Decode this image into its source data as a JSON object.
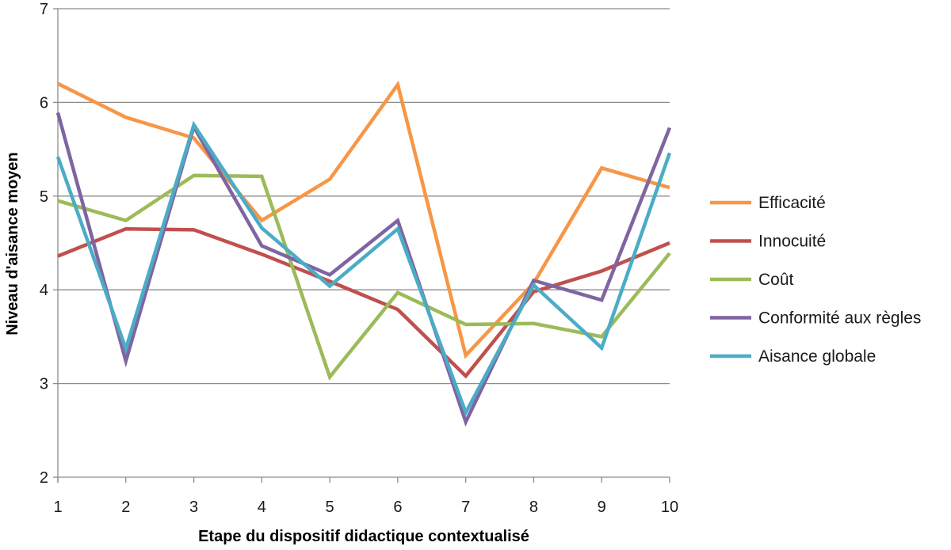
{
  "chart_data": {
    "type": "line",
    "title": "",
    "xlabel": "Etape du dispositif didactique contextualisé",
    "ylabel": "Niveau d'aisance moyen",
    "x": [
      1,
      2,
      3,
      4,
      5,
      6,
      7,
      8,
      9,
      10
    ],
    "xlim": [
      1,
      10
    ],
    "ylim": [
      2,
      7
    ],
    "yticks": [
      2,
      3,
      4,
      5,
      6,
      7
    ],
    "grid": "horizontal",
    "legend_position": "right",
    "series": [
      {
        "name": "Efficacité",
        "color": "#F79646",
        "values": [
          6.2,
          5.84,
          5.62,
          4.74,
          5.18,
          6.19,
          3.3,
          4.07,
          5.3,
          5.09
        ]
      },
      {
        "name": "Innocuité",
        "color": "#C0504D",
        "values": [
          4.36,
          4.65,
          4.64,
          4.38,
          4.09,
          3.79,
          3.08,
          3.98,
          4.2,
          4.5
        ]
      },
      {
        "name": "Coût",
        "color": "#9BBB59",
        "values": [
          4.95,
          4.74,
          5.22,
          5.21,
          3.07,
          3.97,
          3.63,
          3.64,
          3.5,
          4.39
        ]
      },
      {
        "name": "Conformité aux règles",
        "color": "#8064A2",
        "values": [
          5.89,
          3.24,
          5.74,
          4.47,
          4.16,
          4.74,
          2.59,
          4.1,
          3.89,
          5.73
        ]
      },
      {
        "name": "Aisance globale",
        "color": "#4BACC6",
        "values": [
          5.42,
          3.37,
          5.76,
          4.66,
          4.04,
          4.65,
          2.69,
          4.05,
          3.38,
          5.46
        ]
      }
    ]
  }
}
